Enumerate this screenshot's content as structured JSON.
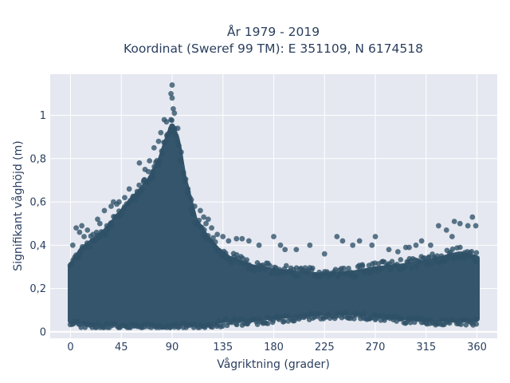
{
  "chart_data": {
    "type": "scatter",
    "title_lines": [
      "År 1979 - 2019",
      "Koordinat (Sweref 99 TM): E 351109, N 6174518"
    ],
    "xlabel": "Vågriktning (grader)",
    "ylabel": "Signifikant våghöjd (m)",
    "xlim": [
      -18,
      378
    ],
    "ylim": [
      -0.03,
      1.19
    ],
    "xticks": [
      0,
      45,
      90,
      135,
      180,
      225,
      270,
      315,
      360
    ],
    "xtick_labels": [
      "0",
      "45",
      "90",
      "135",
      "180",
      "225",
      "270",
      "315",
      "360"
    ],
    "yticks": [
      0,
      0.2,
      0.4,
      0.6,
      0.8,
      1
    ],
    "ytick_labels": [
      "0",
      "0,2",
      "0,4",
      "0,6",
      "0,8",
      "1"
    ],
    "grid": true,
    "marker_color": "#2f5168",
    "plot_background": "#e5e8f0",
    "envelope": {
      "x": [
        0,
        10,
        20,
        30,
        40,
        50,
        60,
        70,
        80,
        85,
        90,
        95,
        100,
        110,
        120,
        130,
        140,
        160,
        180,
        200,
        225,
        250,
        270,
        290,
        315,
        330,
        345,
        360
      ],
      "upper": [
        0.3,
        0.38,
        0.42,
        0.46,
        0.52,
        0.58,
        0.64,
        0.7,
        0.8,
        0.88,
        0.95,
        0.88,
        0.72,
        0.52,
        0.44,
        0.38,
        0.34,
        0.3,
        0.28,
        0.27,
        0.26,
        0.27,
        0.29,
        0.3,
        0.32,
        0.34,
        0.36,
        0.34
      ],
      "lower": [
        0.05,
        0.05,
        0.04,
        0.04,
        0.04,
        0.04,
        0.04,
        0.04,
        0.04,
        0.04,
        0.04,
        0.04,
        0.04,
        0.04,
        0.04,
        0.05,
        0.06,
        0.06,
        0.07,
        0.08,
        0.09,
        0.09,
        0.08,
        0.07,
        0.06,
        0.06,
        0.06,
        0.06
      ]
    },
    "outliers": [
      {
        "x": 90,
        "y": 1.14
      },
      {
        "x": 89,
        "y": 1.1
      },
      {
        "x": 90,
        "y": 1.08
      },
      {
        "x": 91,
        "y": 1.03
      },
      {
        "x": 92,
        "y": 1.01
      },
      {
        "x": 89,
        "y": 0.98
      },
      {
        "x": 83,
        "y": 0.98
      },
      {
        "x": 85,
        "y": 0.97
      },
      {
        "x": 95,
        "y": 0.94
      },
      {
        "x": 80,
        "y": 0.92
      },
      {
        "x": 78,
        "y": 0.88
      },
      {
        "x": 74,
        "y": 0.85
      },
      {
        "x": 70,
        "y": 0.79
      },
      {
        "x": 61,
        "y": 0.78
      },
      {
        "x": 66,
        "y": 0.75
      },
      {
        "x": 69,
        "y": 0.74
      },
      {
        "x": 73,
        "y": 0.72
      },
      {
        "x": 65,
        "y": 0.7
      },
      {
        "x": 52,
        "y": 0.66
      },
      {
        "x": 55,
        "y": 0.62
      },
      {
        "x": 48,
        "y": 0.62
      },
      {
        "x": 43,
        "y": 0.6
      },
      {
        "x": 38,
        "y": 0.6
      },
      {
        "x": 36,
        "y": 0.58
      },
      {
        "x": 41,
        "y": 0.59
      },
      {
        "x": 30,
        "y": 0.56
      },
      {
        "x": 24,
        "y": 0.52
      },
      {
        "x": 26,
        "y": 0.5
      },
      {
        "x": 10,
        "y": 0.49
      },
      {
        "x": 5,
        "y": 0.48
      },
      {
        "x": 8,
        "y": 0.46
      },
      {
        "x": 15,
        "y": 0.47
      },
      {
        "x": 110,
        "y": 0.58
      },
      {
        "x": 115,
        "y": 0.56
      },
      {
        "x": 118,
        "y": 0.53
      },
      {
        "x": 120,
        "y": 0.5
      },
      {
        "x": 122,
        "y": 0.52
      },
      {
        "x": 125,
        "y": 0.48
      },
      {
        "x": 130,
        "y": 0.45
      },
      {
        "x": 140,
        "y": 0.42
      },
      {
        "x": 147,
        "y": 0.43
      },
      {
        "x": 158,
        "y": 0.42
      },
      {
        "x": 167,
        "y": 0.4
      },
      {
        "x": 180,
        "y": 0.44
      },
      {
        "x": 186,
        "y": 0.4
      },
      {
        "x": 190,
        "y": 0.38
      },
      {
        "x": 212,
        "y": 0.4
      },
      {
        "x": 225,
        "y": 0.36
      },
      {
        "x": 236,
        "y": 0.44
      },
      {
        "x": 241,
        "y": 0.42
      },
      {
        "x": 256,
        "y": 0.42
      },
      {
        "x": 267,
        "y": 0.4
      },
      {
        "x": 270,
        "y": 0.44
      },
      {
        "x": 282,
        "y": 0.38
      },
      {
        "x": 297,
        "y": 0.39
      },
      {
        "x": 306,
        "y": 0.4
      },
      {
        "x": 311,
        "y": 0.42
      },
      {
        "x": 319,
        "y": 0.4
      },
      {
        "x": 326,
        "y": 0.49
      },
      {
        "x": 333,
        "y": 0.47
      },
      {
        "x": 338,
        "y": 0.44
      },
      {
        "x": 340,
        "y": 0.51
      },
      {
        "x": 345,
        "y": 0.5
      },
      {
        "x": 352,
        "y": 0.49
      },
      {
        "x": 356,
        "y": 0.53
      },
      {
        "x": 359,
        "y": 0.49
      },
      {
        "x": 100,
        "y": 0.73
      },
      {
        "x": 104,
        "y": 0.66
      },
      {
        "x": 107,
        "y": 0.61
      },
      {
        "x": 98,
        "y": 0.83
      },
      {
        "x": 135,
        "y": 0.44
      },
      {
        "x": 152,
        "y": 0.43
      },
      {
        "x": 200,
        "y": 0.38
      },
      {
        "x": 250,
        "y": 0.4
      },
      {
        "x": 290,
        "y": 0.37
      },
      {
        "x": 300,
        "y": 0.39
      },
      {
        "x": 2,
        "y": 0.4
      },
      {
        "x": 12,
        "y": 0.44
      },
      {
        "x": 20,
        "y": 0.45
      }
    ]
  }
}
